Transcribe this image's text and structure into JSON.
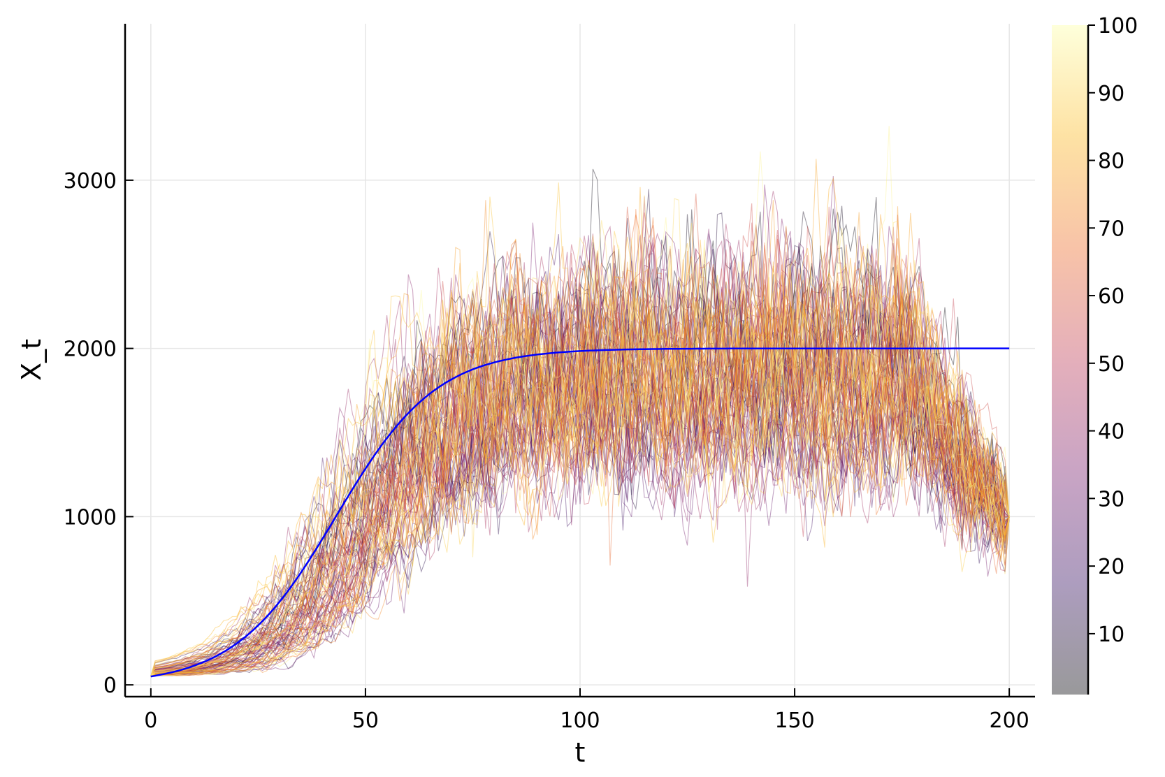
{
  "chart_data": {
    "type": "line",
    "title": "",
    "xlabel": "t",
    "ylabel": "X_t",
    "xlim": [
      -6,
      206
    ],
    "ylim": [
      -70,
      3930
    ],
    "x_ticks": [
      0,
      50,
      100,
      150,
      200
    ],
    "x_tick_labels": [
      "0",
      "50",
      "100",
      "150",
      "200"
    ],
    "y_ticks": [
      0,
      1000,
      2000,
      3000
    ],
    "y_tick_labels": [
      "0",
      "1000",
      "2000",
      "3000"
    ],
    "grid": true,
    "legend": "none",
    "colorbar": {
      "range": [
        1,
        100
      ],
      "ticks": [
        10,
        20,
        30,
        40,
        50,
        60,
        70,
        80,
        90,
        100
      ],
      "tick_labels": [
        "10",
        "20",
        "30",
        "40",
        "50",
        "60",
        "70",
        "80",
        "90",
        "100"
      ],
      "colormap": [
        "#000004",
        "#320a5e",
        "#781c6d",
        "#bc3754",
        "#ed6925",
        "#fbb61a",
        "#fcffa4"
      ],
      "opacity": 0.4
    },
    "paths": {
      "count": 100,
      "t_start": 0,
      "t_end": 200,
      "initial_value": 50,
      "final_value": 1000,
      "plateau_value": 1800,
      "color_by": "path index (1-100)"
    },
    "mean_curve": {
      "description": "logistic growth",
      "initial_value": 50,
      "carrying_capacity": 2000,
      "t_end": 200,
      "color": "#0000ff"
    }
  }
}
